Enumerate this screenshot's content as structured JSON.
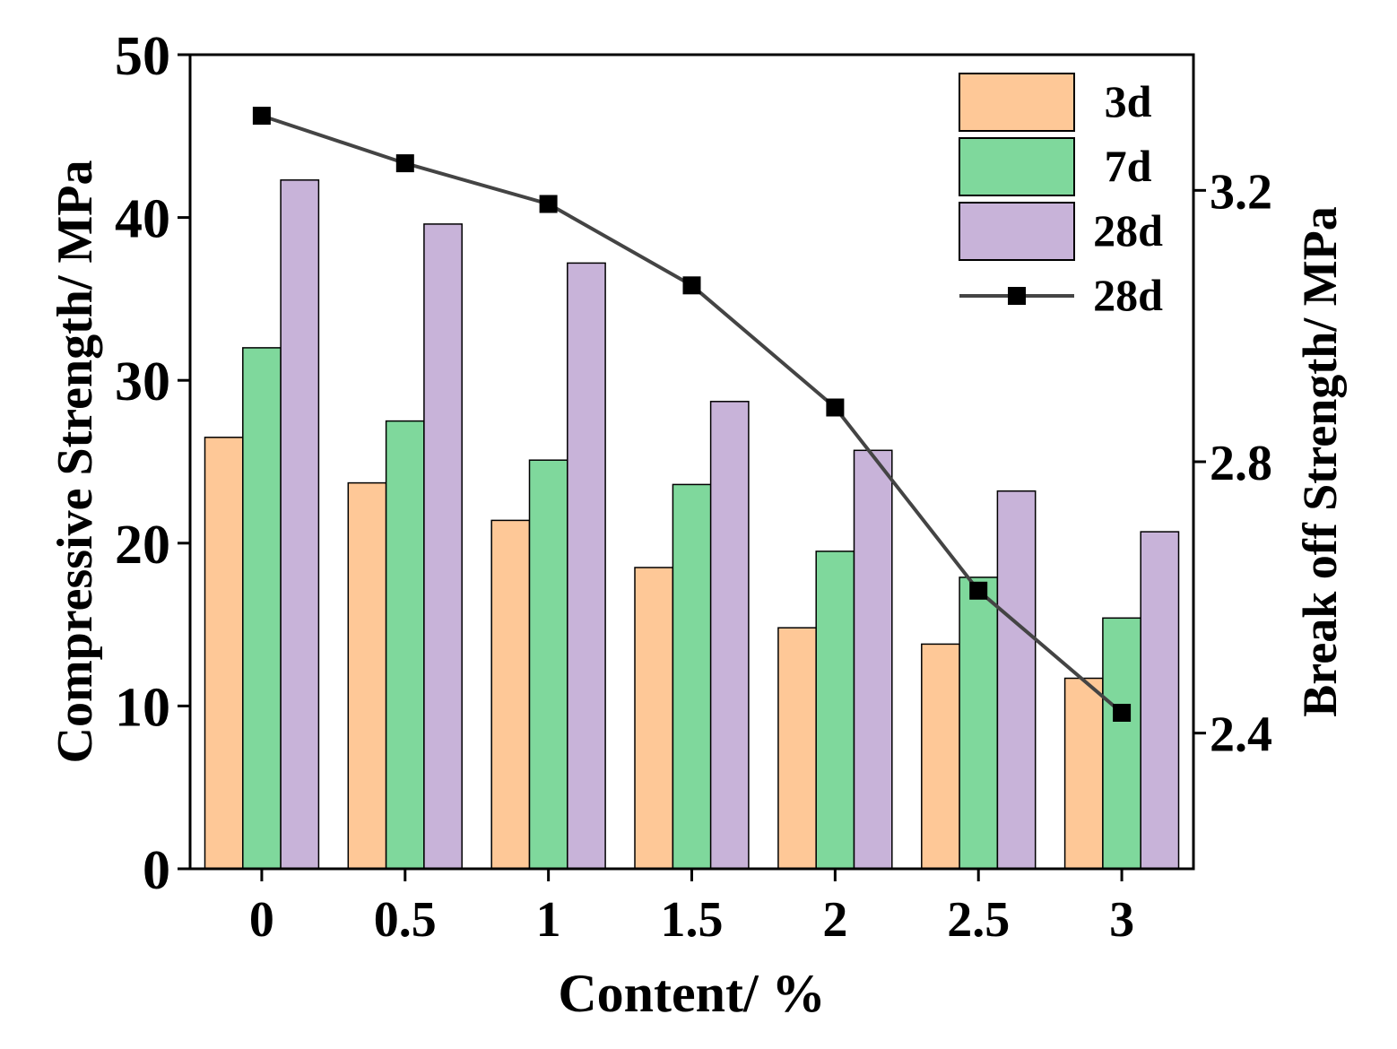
{
  "chart_data": {
    "type": "bar",
    "xlabel": "Content/ %",
    "ylabel": "Compressive Strength/ MPa",
    "y2label": "Break off Strength/ MPa",
    "categories": [
      "0",
      "0.5",
      "1",
      "1.5",
      "2",
      "2.5",
      "3"
    ],
    "ylim": [
      0,
      50
    ],
    "yticks": [
      "0",
      "10",
      "20",
      "30",
      "40",
      "50"
    ],
    "y2lim": [
      2.2,
      3.4
    ],
    "y2ticks": [
      "2.4",
      "2.8",
      "3.2"
    ],
    "series": [
      {
        "name": "3d",
        "type": "bar",
        "axis": "left",
        "color": "#FEC897",
        "values": [
          26.5,
          23.7,
          21.4,
          18.5,
          14.8,
          13.8,
          11.7
        ]
      },
      {
        "name": "7d",
        "type": "bar",
        "axis": "left",
        "color": "#7FD89C",
        "values": [
          32.0,
          27.5,
          25.1,
          23.6,
          19.5,
          17.9,
          15.4
        ]
      },
      {
        "name": "28d",
        "type": "bar",
        "axis": "left",
        "color": "#C8B3D9",
        "values": [
          42.3,
          39.6,
          37.2,
          28.7,
          25.7,
          23.2,
          20.7
        ]
      },
      {
        "name": "28d",
        "type": "line",
        "axis": "right",
        "color": "#444444",
        "values": [
          3.31,
          3.24,
          3.18,
          3.06,
          2.88,
          2.61,
          2.43
        ]
      }
    ],
    "legend": "top-right"
  }
}
